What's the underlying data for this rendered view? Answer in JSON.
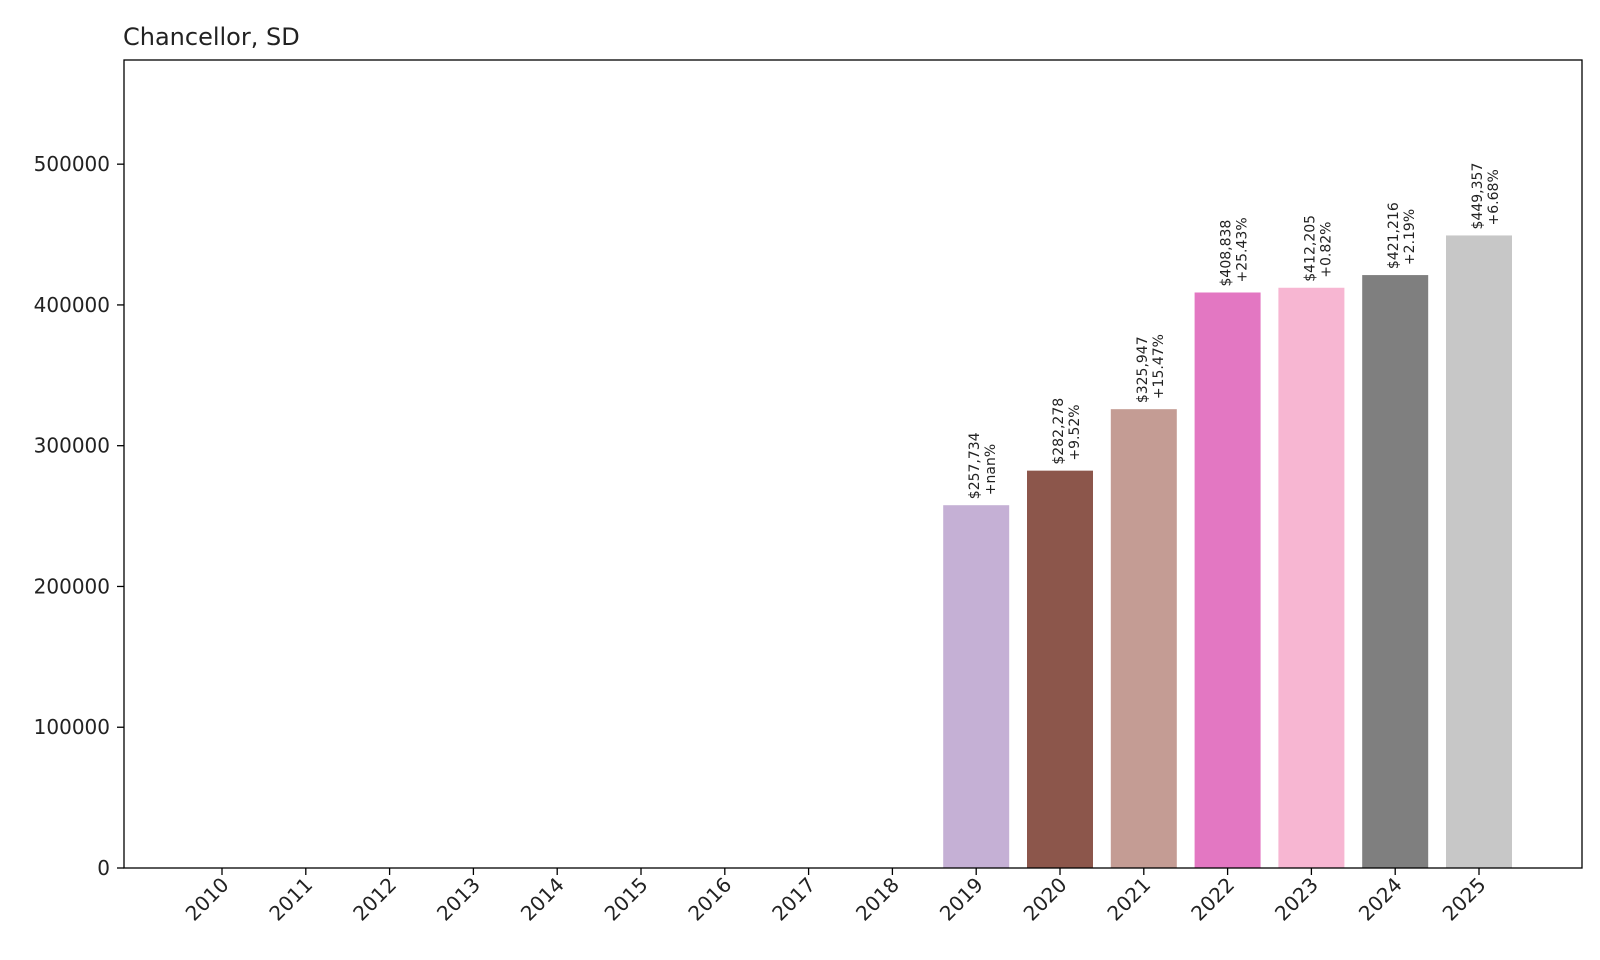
{
  "chart_data": {
    "type": "bar",
    "title": "Chancellor, SD",
    "xlabel": "",
    "ylabel": "",
    "categories": [
      "2010",
      "2011",
      "2012",
      "2013",
      "2014",
      "2015",
      "2016",
      "2017",
      "2018",
      "2019",
      "2020",
      "2021",
      "2022",
      "2023",
      "2024",
      "2025"
    ],
    "values": [
      0,
      0,
      0,
      0,
      0,
      0,
      0,
      0,
      0,
      257734,
      282278,
      325947,
      408838,
      412205,
      421216,
      449357
    ],
    "value_labels": [
      "",
      "",
      "",
      "",
      "",
      "",
      "",
      "",
      "",
      "$257,734",
      "$282,278",
      "$325,947",
      "$408,838",
      "$412,205",
      "$421,216",
      "$449,357"
    ],
    "change_labels": [
      "",
      "",
      "",
      "",
      "",
      "",
      "",
      "",
      "",
      "+nan%",
      "+9.52%",
      "+15.47%",
      "+25.43%",
      "+0.82%",
      "+2.19%",
      "+6.68%"
    ],
    "colors": [
      "#1f77b4",
      "#ff7f0e",
      "#2ca02c",
      "#d62728",
      "#9467bd",
      "#8c564b",
      "#e377c2",
      "#7f7f7f",
      "#bcbd22",
      "#c5b0d5",
      "#8c564b",
      "#c49c94",
      "#e377c2",
      "#f7b6d2",
      "#7f7f7f",
      "#c7c7c7"
    ],
    "ylim": [
      0,
      574000
    ],
    "yticks": [
      0,
      100000,
      200000,
      300000,
      400000,
      500000
    ],
    "grid": false,
    "legend": "none"
  }
}
